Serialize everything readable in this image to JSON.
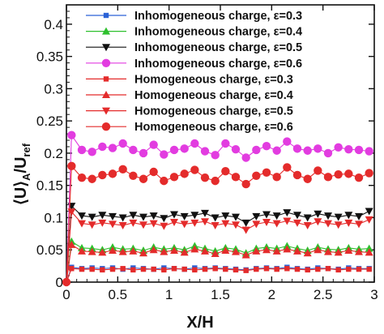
{
  "chart_data": {
    "type": "line",
    "xlabel": "X/H",
    "ylabel": {
      "lbracket": "⟨",
      "u1": "U",
      "rbracket": "⟩",
      "sub_a": "A",
      "slash": "/",
      "u2": "U",
      "sub_ref": "ref"
    },
    "xlim": [
      0,
      3
    ],
    "ylim": [
      0,
      0.43
    ],
    "x_ticks": [
      "0",
      "0.5",
      "1",
      "1.5",
      "2",
      "2.5",
      "3"
    ],
    "y_ticks": [
      "0",
      "0.05",
      "0.1",
      "0.15",
      "0.2",
      "0.25",
      "0.3",
      "0.35",
      "0.4"
    ],
    "x": [
      0.0,
      0.05,
      0.15,
      0.25,
      0.35,
      0.45,
      0.55,
      0.65,
      0.75,
      0.85,
      0.95,
      1.05,
      1.15,
      1.25,
      1.35,
      1.45,
      1.55,
      1.65,
      1.75,
      1.85,
      1.95,
      2.05,
      2.15,
      2.25,
      2.35,
      2.45,
      2.55,
      2.65,
      2.75,
      2.85,
      2.95
    ],
    "series": [
      {
        "name": "Inhomogeneous charge, ε=0.3",
        "color": "#2b62d6",
        "marker": "square",
        "values": [
          0.0,
          0.023,
          0.021,
          0.022,
          0.021,
          0.022,
          0.02,
          0.022,
          0.021,
          0.02,
          0.022,
          0.021,
          0.02,
          0.022,
          0.021,
          0.022,
          0.021,
          0.02,
          0.019,
          0.021,
          0.022,
          0.021,
          0.023,
          0.021,
          0.02,
          0.022,
          0.021,
          0.02,
          0.022,
          0.021,
          0.021
        ]
      },
      {
        "name": "Inhomogeneous charge, ε=0.4",
        "color": "#2ec02e",
        "marker": "triangle-up",
        "values": [
          0.0,
          0.063,
          0.053,
          0.052,
          0.05,
          0.054,
          0.051,
          0.052,
          0.049,
          0.054,
          0.051,
          0.053,
          0.05,
          0.056,
          0.052,
          0.048,
          0.053,
          0.051,
          0.045,
          0.052,
          0.054,
          0.052,
          0.056,
          0.052,
          0.049,
          0.054,
          0.051,
          0.05,
          0.053,
          0.051,
          0.052
        ]
      },
      {
        "name": "Inhomogeneous charge, ε=0.5",
        "color": "#111111",
        "marker": "triangle-down",
        "values": [
          0.0,
          0.118,
          0.103,
          0.101,
          0.104,
          0.102,
          0.1,
          0.104,
          0.101,
          0.103,
          0.099,
          0.105,
          0.102,
          0.104,
          0.107,
          0.1,
          0.103,
          0.101,
          0.092,
          0.102,
          0.105,
          0.103,
          0.108,
          0.104,
          0.1,
          0.106,
          0.103,
          0.101,
          0.104,
          0.102,
          0.11
        ]
      },
      {
        "name": "Inhomogeneous charge, ε=0.6",
        "color": "#e23ce0",
        "marker": "circle",
        "values": [
          0.0,
          0.228,
          0.205,
          0.202,
          0.21,
          0.208,
          0.215,
          0.205,
          0.2,
          0.213,
          0.198,
          0.205,
          0.207,
          0.215,
          0.203,
          0.197,
          0.215,
          0.206,
          0.193,
          0.205,
          0.211,
          0.204,
          0.218,
          0.207,
          0.204,
          0.207,
          0.2,
          0.209,
          0.206,
          0.205,
          0.203
        ]
      },
      {
        "name": "Homogeneous charge, ε=0.3",
        "color": "#e42b2b",
        "marker": "square",
        "values": [
          0.0,
          0.021,
          0.02,
          0.02,
          0.019,
          0.02,
          0.021,
          0.019,
          0.02,
          0.02,
          0.019,
          0.021,
          0.02,
          0.019,
          0.02,
          0.021,
          0.02,
          0.019,
          0.018,
          0.02,
          0.021,
          0.02,
          0.021,
          0.02,
          0.019,
          0.02,
          0.021,
          0.019,
          0.02,
          0.02,
          0.02
        ]
      },
      {
        "name": "Homogeneous charge, ε=0.4",
        "color": "#e42b2b",
        "marker": "triangle-up",
        "values": [
          0.0,
          0.058,
          0.048,
          0.047,
          0.046,
          0.049,
          0.047,
          0.048,
          0.045,
          0.05,
          0.047,
          0.049,
          0.046,
          0.051,
          0.048,
          0.044,
          0.049,
          0.047,
          0.042,
          0.048,
          0.05,
          0.048,
          0.051,
          0.048,
          0.045,
          0.05,
          0.047,
          0.046,
          0.049,
          0.047,
          0.046
        ]
      },
      {
        "name": "Homogeneous charge, ε=0.5",
        "color": "#e42b2b",
        "marker": "triangle-down",
        "values": [
          0.0,
          0.109,
          0.091,
          0.089,
          0.092,
          0.09,
          0.088,
          0.092,
          0.089,
          0.091,
          0.087,
          0.093,
          0.09,
          0.092,
          0.094,
          0.088,
          0.091,
          0.089,
          0.081,
          0.09,
          0.093,
          0.091,
          0.095,
          0.092,
          0.088,
          0.094,
          0.091,
          0.089,
          0.092,
          0.09,
          0.097
        ]
      },
      {
        "name": "Homogeneous charge, ε=0.6",
        "color": "#e42b2b",
        "marker": "circle",
        "values": [
          0.0,
          0.18,
          0.162,
          0.16,
          0.166,
          0.168,
          0.175,
          0.165,
          0.16,
          0.171,
          0.157,
          0.163,
          0.168,
          0.174,
          0.162,
          0.157,
          0.172,
          0.163,
          0.152,
          0.165,
          0.17,
          0.163,
          0.178,
          0.166,
          0.16,
          0.173,
          0.163,
          0.167,
          0.168,
          0.162,
          0.169
        ]
      }
    ],
    "legend_position": "top-right",
    "grid": false
  }
}
